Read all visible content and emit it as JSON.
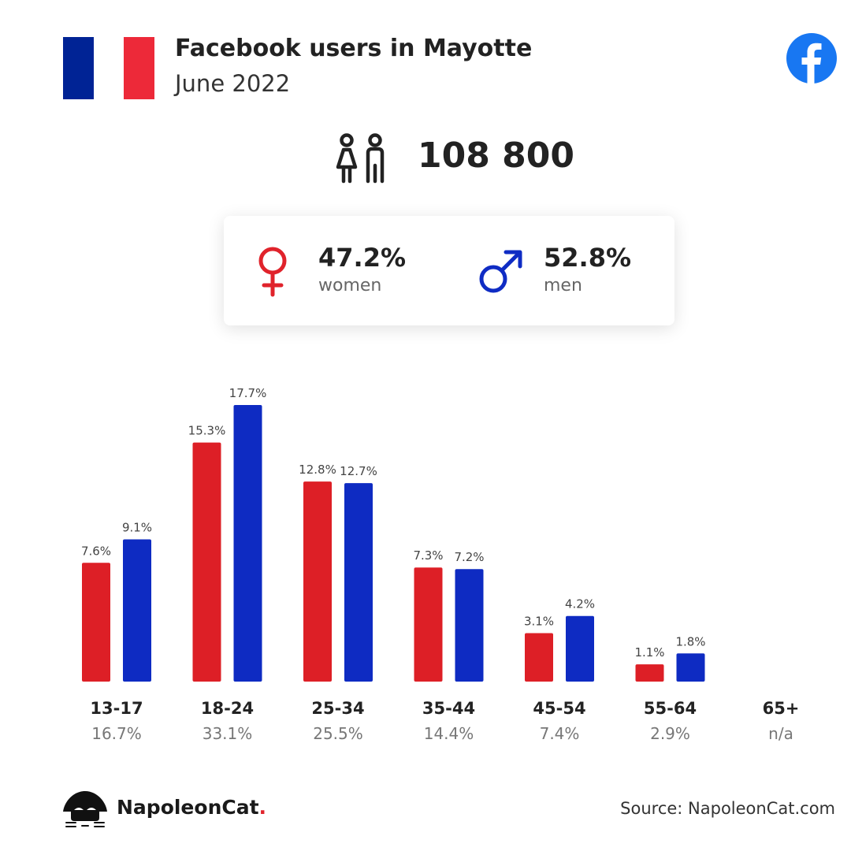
{
  "header": {
    "title": "Facebook users in Mayotte",
    "subtitle": "June 2022",
    "flag_colors": [
      "#002395",
      "#ffffff",
      "#ed2939"
    ]
  },
  "users": {
    "total": "108 800",
    "icon": "people-icon"
  },
  "gender": {
    "women": {
      "pct": "47.2%",
      "label": "women",
      "color": "#e0232b",
      "icon": "female-icon"
    },
    "men": {
      "pct": "52.8%",
      "label": "men",
      "color": "#0f2cc4",
      "icon": "male-icon"
    }
  },
  "colors": {
    "women": "#dd1f26",
    "men": "#0e2bc2",
    "facebook": "#1877f2"
  },
  "chart_data": {
    "type": "bar",
    "categories": [
      "13-17",
      "18-24",
      "25-34",
      "35-44",
      "45-54",
      "55-64",
      "65+"
    ],
    "group_totals": [
      "16.7%",
      "33.1%",
      "25.5%",
      "14.4%",
      "7.4%",
      "2.9%",
      "n/a"
    ],
    "series": [
      {
        "name": "women",
        "values": [
          7.6,
          15.3,
          12.8,
          7.3,
          3.1,
          1.1,
          null
        ]
      },
      {
        "name": "men",
        "values": [
          9.1,
          17.7,
          12.7,
          7.2,
          4.2,
          1.8,
          null
        ]
      }
    ],
    "value_suffix": "%",
    "ylim": [
      0,
      17.7
    ],
    "grid": false
  },
  "footer": {
    "brand": "NapoleonCat",
    "brand_dot": ".",
    "source": "Source: NapoleonCat.com"
  }
}
